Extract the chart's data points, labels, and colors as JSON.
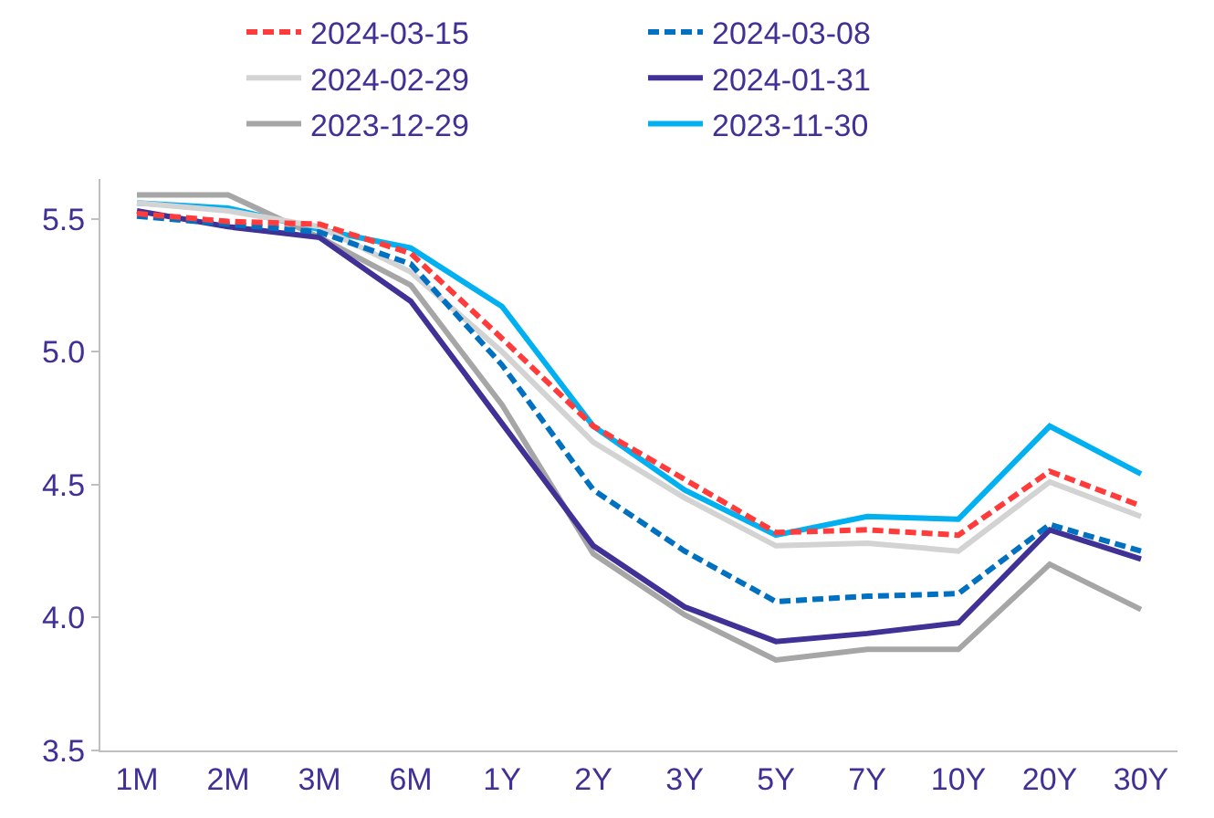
{
  "chart_data": {
    "type": "line",
    "categories": [
      "1M",
      "2M",
      "3M",
      "6M",
      "1Y",
      "2Y",
      "3Y",
      "5Y",
      "7Y",
      "10Y",
      "20Y",
      "30Y"
    ],
    "series": [
      {
        "name": "2024-03-15",
        "color": "#ff3b3b",
        "line_style": "dashed",
        "values": [
          5.52,
          5.49,
          5.48,
          5.37,
          5.05,
          4.72,
          4.52,
          4.32,
          4.33,
          4.31,
          4.55,
          4.42
        ]
      },
      {
        "name": "2024-03-08",
        "color": "#0070c0",
        "line_style": "dashed",
        "values": [
          5.51,
          5.48,
          5.45,
          5.33,
          4.95,
          4.48,
          4.25,
          4.06,
          4.08,
          4.09,
          4.35,
          4.25
        ]
      },
      {
        "name": "2024-02-29",
        "color": "#d3d3d3",
        "line_style": "solid",
        "values": [
          5.56,
          5.53,
          5.47,
          5.3,
          5.0,
          4.66,
          4.45,
          4.27,
          4.28,
          4.25,
          4.51,
          4.38
        ]
      },
      {
        "name": "2024-01-31",
        "color": "#3f3195",
        "line_style": "solid",
        "values": [
          5.53,
          5.47,
          5.43,
          5.19,
          4.73,
          4.27,
          4.04,
          3.91,
          3.94,
          3.98,
          4.33,
          4.22
        ]
      },
      {
        "name": "2023-12-29",
        "color": "#a6a6a6",
        "line_style": "solid",
        "values": [
          5.59,
          5.59,
          5.43,
          5.25,
          4.8,
          4.24,
          4.01,
          3.84,
          3.88,
          3.88,
          4.2,
          4.03
        ]
      },
      {
        "name": "2023-11-30",
        "color": "#00b0f0",
        "line_style": "solid",
        "values": [
          5.56,
          5.54,
          5.46,
          5.39,
          5.17,
          4.72,
          4.48,
          4.31,
          4.38,
          4.37,
          4.72,
          4.54
        ]
      }
    ],
    "ylim": [
      3.5,
      5.65
    ],
    "yticks": [
      {
        "value": 3.5,
        "label": "3.5"
      },
      {
        "value": 4.0,
        "label": "4.0"
      },
      {
        "value": 4.5,
        "label": "4.5"
      },
      {
        "value": 5.0,
        "label": "5.0"
      },
      {
        "value": 5.5,
        "label": "5.5"
      }
    ],
    "legend": "top",
    "marker": "none"
  }
}
